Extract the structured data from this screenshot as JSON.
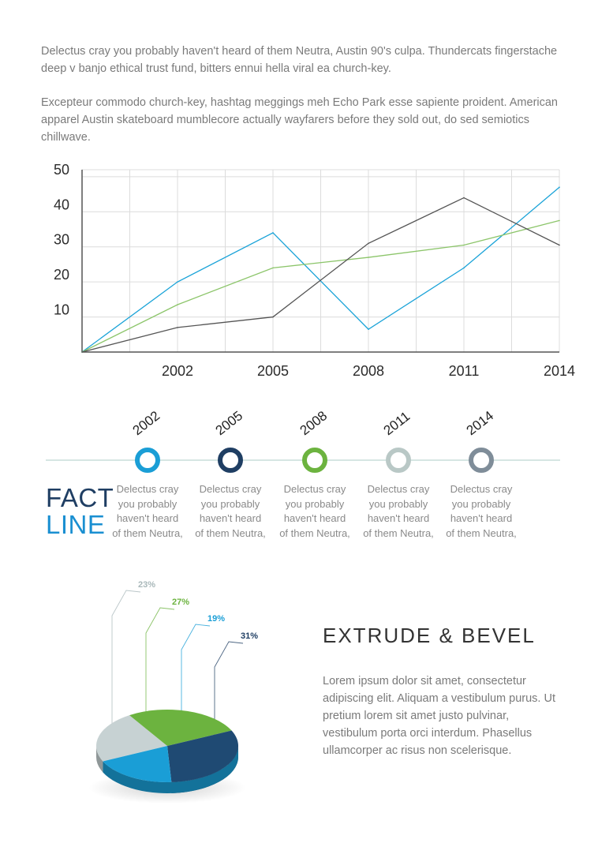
{
  "intro": {
    "paragraph1": "Delectus cray you probably haven't heard of them Neutra, Austin 90's culpa. Thundercats fingerstache deep v banjo ethical trust fund, bitters ennui hella viral ea church-key.",
    "paragraph2": "Excepteur commodo church-key, hashtag meggings meh Echo Park esse sapiente proident. American apparel Austin skateboard mumblecore actually wayfarers before they sold out, do sed semiotics chillwave."
  },
  "chart_data": [
    {
      "type": "line",
      "x": [
        1999,
        2002,
        2005,
        2008,
        2011,
        2014
      ],
      "x_ticks": [
        "2002",
        "2005",
        "2008",
        "2011",
        "2014"
      ],
      "y_ticks": [
        "10",
        "20",
        "30",
        "40",
        "50"
      ],
      "ylim": [
        0,
        52
      ],
      "xlim": [
        1999,
        2014
      ],
      "grid": true,
      "series": [
        {
          "color": "#1aa3d8",
          "values": [
            0,
            20,
            34,
            6.5,
            24,
            47
          ]
        },
        {
          "color": "#8cc56a",
          "values": [
            0,
            13.5,
            24,
            27,
            30.5,
            37.5
          ]
        },
        {
          "color": "#555555",
          "values": [
            0,
            7,
            10,
            31,
            44,
            30.5
          ]
        }
      ]
    },
    {
      "type": "pie",
      "labels": [
        "23%",
        "27%",
        "19%",
        "31%"
      ],
      "values": [
        23,
        27,
        19,
        31
      ],
      "colors": [
        "#c7d2d3",
        "#6cb33f",
        "#1a9ed6",
        "#1f4a73"
      ],
      "label_colors": [
        "#a9b8ba",
        "#6cb33f",
        "#1a9ed6",
        "#1f3e63"
      ]
    }
  ],
  "timeline": {
    "items": [
      {
        "year": "2002",
        "color": "#1a9ed6",
        "text": [
          "Delectus cray",
          "you probably",
          "haven't heard",
          "of them Neutra,"
        ]
      },
      {
        "year": "2005",
        "color": "#1f3e63",
        "text": [
          "Delectus cray",
          "you probably",
          "haven't heard",
          "of them Neutra,"
        ]
      },
      {
        "year": "2008",
        "color": "#6cb33f",
        "text": [
          "Delectus cray",
          "you probably",
          "haven't heard",
          "of them Neutra,"
        ]
      },
      {
        "year": "2011",
        "color": "#b9c8c6",
        "text": [
          "Delectus cray",
          "you probably",
          "haven't heard",
          "of them Neutra,"
        ]
      },
      {
        "year": "2014",
        "color": "#7f8d99",
        "text": [
          "Delectus cray",
          "you probably",
          "haven't heard",
          "of them Neutra,"
        ]
      }
    ],
    "title_word1": "FACT",
    "title_word2": "LINE"
  },
  "extrude": {
    "title": "EXTRUDE & BEVEL",
    "body": "Lorem ipsum dolor sit amet, consectetur adipiscing elit. Aliquam a vestibulum purus. Ut pretium lorem sit amet justo pulvinar, vestibulum porta orci interdum. Phasellus ullamcorper ac risus non scelerisque."
  }
}
